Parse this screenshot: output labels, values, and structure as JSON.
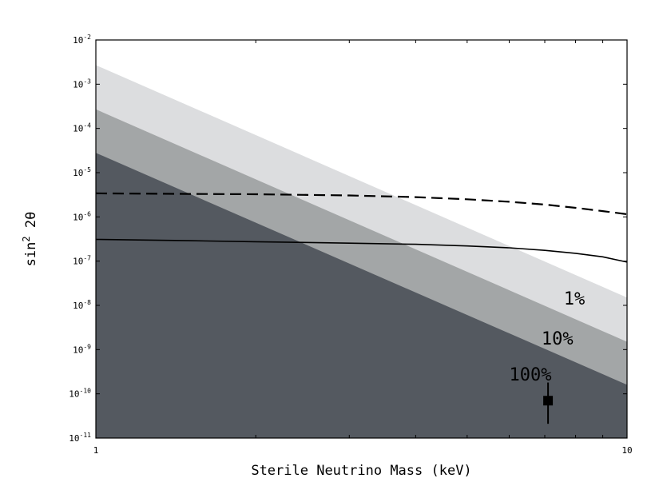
{
  "chart_data": {
    "type": "line",
    "title": "",
    "xlabel": "Sterile Neutrino Mass (keV)",
    "ylabel_base": "sin",
    "ylabel_sup": "2",
    "ylabel_tail": " 2θ",
    "xscale": "log",
    "yscale": "log",
    "xlim": [
      1,
      10
    ],
    "ylim": [
      1e-11,
      0.01
    ],
    "grid": false,
    "x_tick_labels": [
      {
        "value": 1,
        "label": "1"
      },
      {
        "value": 10,
        "label": "10"
      }
    ],
    "y_tick_labels": [
      {
        "value": 1e-11,
        "base": "10",
        "exp": "-11"
      },
      {
        "value": 1e-10,
        "base": "10",
        "exp": "-10"
      },
      {
        "value": 1e-09,
        "base": "10",
        "exp": "-9"
      },
      {
        "value": 1e-08,
        "base": "10",
        "exp": "-8"
      },
      {
        "value": 1e-07,
        "base": "10",
        "exp": "-7"
      },
      {
        "value": 1e-06,
        "base": "10",
        "exp": "-6"
      },
      {
        "value": 1e-05,
        "base": "10",
        "exp": "-5"
      },
      {
        "value": 0.0001,
        "base": "10",
        "exp": "-4"
      },
      {
        "value": 0.001,
        "base": "10",
        "exp": "-3"
      },
      {
        "value": 0.01,
        "base": "10",
        "exp": "-2"
      }
    ],
    "bands": [
      {
        "label": "1%",
        "color": "#dcdddf",
        "upper": [
          [
            1,
            0.0027
          ],
          [
            10,
            1.5e-08
          ]
        ]
      },
      {
        "label": "10%",
        "color": "#a3a6a7",
        "upper": [
          [
            1,
            0.00027
          ],
          [
            10,
            1.5e-09
          ]
        ]
      },
      {
        "label": "100%",
        "color": "#545960",
        "upper": [
          [
            1,
            2.8e-05
          ],
          [
            10,
            1.6e-10
          ]
        ]
      }
    ],
    "band_label_positions": [
      {
        "label": "1%",
        "x": 7.6,
        "y": 1.05e-08
      },
      {
        "label": "10%",
        "x": 6.9,
        "y": 1.3e-09
      },
      {
        "label": "100%",
        "x": 6.0,
        "y": 2e-10
      }
    ],
    "series": [
      {
        "style": "dashed",
        "color": "#000000",
        "points": [
          [
            1,
            3.4e-06
          ],
          [
            1.5,
            3.3e-06
          ],
          [
            2,
            3.25e-06
          ],
          [
            3,
            3.05e-06
          ],
          [
            4,
            2.8e-06
          ],
          [
            5,
            2.5e-06
          ],
          [
            6,
            2.2e-06
          ],
          [
            7,
            1.9e-06
          ],
          [
            8,
            1.6e-06
          ],
          [
            9,
            1.35e-06
          ],
          [
            10,
            1.15e-06
          ]
        ]
      },
      {
        "style": "solid",
        "color": "#000000",
        "points": [
          [
            1,
            3.1e-07
          ],
          [
            1.5,
            2.9e-07
          ],
          [
            2,
            2.75e-07
          ],
          [
            3,
            2.55e-07
          ],
          [
            4,
            2.4e-07
          ],
          [
            5,
            2.2e-07
          ],
          [
            6,
            2e-07
          ],
          [
            7,
            1.75e-07
          ],
          [
            8,
            1.5e-07
          ],
          [
            9,
            1.25e-07
          ],
          [
            10,
            9.5e-08
          ]
        ]
      }
    ],
    "data_point": {
      "x": 7.1,
      "y": 7e-11,
      "y_low": 2.1e-11,
      "y_high": 1.8e-10,
      "marker": "square",
      "color": "#000000"
    }
  }
}
